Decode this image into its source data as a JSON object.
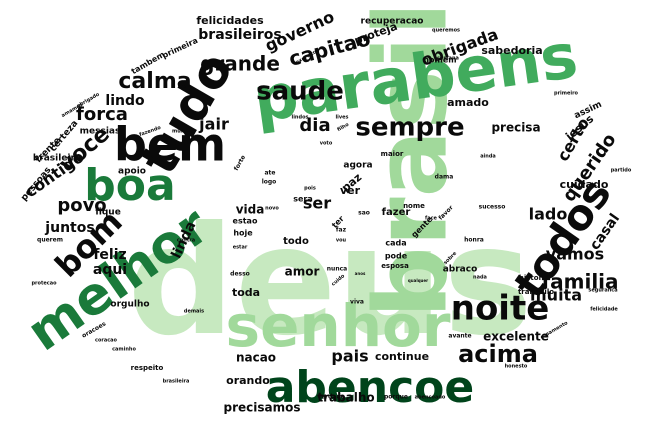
{
  "palette": {
    "dark": "#0a0a0a",
    "deep_green": "#00441b",
    "green": "#1a7a3a",
    "mid_green": "#41ab5d",
    "light_green": "#a1d99b",
    "pale_green": "#c7e9c0"
  },
  "words": [
    {
      "text": "deus",
      "weight": 1.0,
      "tone": "pale_green"
    },
    {
      "text": "brasil",
      "weight": 0.9,
      "tone": "light_green"
    },
    {
      "text": "parabens",
      "weight": 0.72,
      "tone": "mid_green"
    },
    {
      "text": "senhor",
      "weight": 0.7,
      "tone": "light_green"
    },
    {
      "text": "melhor",
      "weight": 0.68,
      "tone": "green"
    },
    {
      "text": "abencoe",
      "weight": 0.66,
      "tone": "deep_green"
    },
    {
      "text": "tudo",
      "weight": 0.62,
      "tone": "dark"
    },
    {
      "text": "bem",
      "weight": 0.6,
      "tone": "dark"
    },
    {
      "text": "boa",
      "weight": 0.58,
      "tone": "green"
    },
    {
      "text": "todos",
      "weight": 0.55,
      "tone": "dark"
    },
    {
      "text": "noite",
      "weight": 0.52,
      "tone": "dark"
    },
    {
      "text": "bom",
      "weight": 0.48,
      "tone": "dark"
    },
    {
      "text": "sempre",
      "weight": 0.4,
      "tone": "dark"
    },
    {
      "text": "saude",
      "weight": 0.4,
      "tone": "dark"
    },
    {
      "text": "acima",
      "weight": 0.36,
      "tone": "dark"
    },
    {
      "text": "calma",
      "weight": 0.3,
      "tone": "dark"
    },
    {
      "text": "grande",
      "weight": 0.28,
      "tone": "dark"
    },
    {
      "text": "voce",
      "weight": 0.3,
      "tone": "dark"
    },
    {
      "text": "familia",
      "weight": 0.3,
      "tone": "dark"
    },
    {
      "text": "capitao",
      "weight": 0.26,
      "tone": "dark"
    },
    {
      "text": "querido",
      "weight": 0.24,
      "tone": "dark"
    },
    {
      "text": "vamos",
      "weight": 0.22,
      "tone": "dark"
    },
    {
      "text": "obrigada",
      "weight": 0.22,
      "tone": "dark"
    },
    {
      "text": "governo",
      "weight": 0.22,
      "tone": "dark"
    },
    {
      "text": "forca",
      "weight": 0.22,
      "tone": "dark"
    },
    {
      "text": "dia",
      "weight": 0.24,
      "tone": "dark"
    },
    {
      "text": "povo",
      "weight": 0.22,
      "tone": "dark"
    },
    {
      "text": "contigo",
      "weight": 0.2,
      "tone": "dark"
    },
    {
      "text": "lado",
      "weight": 0.2,
      "tone": "dark"
    },
    {
      "text": "jair",
      "weight": 0.2,
      "tone": "dark"
    },
    {
      "text": "muita",
      "weight": 0.2,
      "tone": "dark"
    },
    {
      "text": "pais",
      "weight": 0.2,
      "tone": "dark"
    },
    {
      "text": "brasileiros",
      "weight": 0.18,
      "tone": "dark"
    },
    {
      "text": "certo",
      "weight": 0.18,
      "tone": "dark"
    },
    {
      "text": "casal",
      "weight": 0.18,
      "tone": "dark"
    },
    {
      "text": "juntos",
      "weight": 0.18,
      "tone": "dark"
    },
    {
      "text": "ser",
      "weight": 0.2,
      "tone": "dark"
    },
    {
      "text": "lindo",
      "weight": 0.16,
      "tone": "dark"
    },
    {
      "text": "feliz",
      "weight": 0.16,
      "tone": "dark"
    },
    {
      "text": "linda",
      "weight": 0.16,
      "tone": "dark"
    },
    {
      "text": "aqui",
      "weight": 0.16,
      "tone": "dark"
    },
    {
      "text": "precisa",
      "weight": 0.15,
      "tone": "dark"
    },
    {
      "text": "amor",
      "weight": 0.15,
      "tone": "dark"
    },
    {
      "text": "vida",
      "weight": 0.15,
      "tone": "dark"
    },
    {
      "text": "excelente",
      "weight": 0.14,
      "tone": "dark"
    },
    {
      "text": "continue",
      "weight": 0.14,
      "tone": "dark"
    },
    {
      "text": "nacao",
      "weight": 0.14,
      "tone": "dark"
    },
    {
      "text": "trabalho",
      "weight": 0.14,
      "tone": "dark"
    },
    {
      "text": "precisamos",
      "weight": 0.14,
      "tone": "dark"
    },
    {
      "text": "felicidades",
      "weight": 0.13,
      "tone": "dark"
    },
    {
      "text": "amado",
      "weight": 0.13,
      "tone": "dark"
    },
    {
      "text": "sabedoria",
      "weight": 0.12,
      "tone": "dark"
    },
    {
      "text": "proteja",
      "weight": 0.12,
      "tone": "dark"
    },
    {
      "text": "cuidado",
      "weight": 0.12,
      "tone": "dark"
    },
    {
      "text": "jesus",
      "weight": 0.12,
      "tone": "dark"
    },
    {
      "text": "toda",
      "weight": 0.12,
      "tone": "dark"
    },
    {
      "text": "orando",
      "weight": 0.11,
      "tone": "dark"
    },
    {
      "text": "recuperacao",
      "weight": 0.1,
      "tone": "dark"
    },
    {
      "text": "messias",
      "weight": 0.1,
      "tone": "dark"
    },
    {
      "text": "brasileiro",
      "weight": 0.1,
      "tone": "dark"
    },
    {
      "text": "pessoas",
      "weight": 0.1,
      "tone": "dark"
    },
    {
      "text": "certeza",
      "weight": 0.1,
      "tone": "dark"
    },
    {
      "text": "frente",
      "weight": 0.1,
      "tone": "dark"
    },
    {
      "text": "assim",
      "weight": 0.1,
      "tone": "dark"
    },
    {
      "text": "todo",
      "weight": 0.1,
      "tone": "dark"
    },
    {
      "text": "fazer",
      "weight": 0.1,
      "tone": "dark"
    },
    {
      "text": "paz",
      "weight": 0.12,
      "tone": "dark"
    },
    {
      "text": "agora",
      "weight": 0.09,
      "tone": "dark"
    },
    {
      "text": "ver",
      "weight": 0.12,
      "tone": "dark"
    },
    {
      "text": "apoio",
      "weight": 0.09,
      "tone": "dark"
    },
    {
      "text": "fique",
      "weight": 0.09,
      "tone": "dark"
    },
    {
      "text": "abraco",
      "weight": 0.09,
      "tone": "dark"
    },
    {
      "text": "orgulho",
      "weight": 0.09,
      "tone": "dark"
    },
    {
      "text": "homem",
      "weight": 0.08,
      "tone": "dark"
    },
    {
      "text": "primeira",
      "weight": 0.07,
      "tone": "dark"
    },
    {
      "text": "tambem",
      "weight": 0.07,
      "tone": "dark"
    },
    {
      "text": "cada",
      "weight": 0.08,
      "tone": "dark"
    },
    {
      "text": "pode",
      "weight": 0.08,
      "tone": "dark"
    },
    {
      "text": "esposa",
      "weight": 0.07,
      "tone": "dark"
    },
    {
      "text": "gente",
      "weight": 0.08,
      "tone": "dark"
    },
    {
      "text": "nome",
      "weight": 0.07,
      "tone": "dark"
    },
    {
      "text": "hoje",
      "weight": 0.08,
      "tone": "dark"
    },
    {
      "text": "estao",
      "weight": 0.08,
      "tone": "dark"
    },
    {
      "text": "sera",
      "weight": 0.08,
      "tone": "dark"
    },
    {
      "text": "maior",
      "weight": 0.07,
      "tone": "dark"
    },
    {
      "text": "tranquilo",
      "weight": 0.07,
      "tone": "dark"
    },
    {
      "text": "historia",
      "weight": 0.07,
      "tone": "dark"
    },
    {
      "text": "sucesso",
      "weight": 0.06,
      "tone": "dark"
    },
    {
      "text": "respeito",
      "weight": 0.07,
      "tone": "dark"
    },
    {
      "text": "verdade",
      "weight": 0.06,
      "tone": "dark"
    },
    {
      "text": "porque",
      "weight": 0.06,
      "tone": "dark"
    },
    {
      "text": "abencoado",
      "weight": 0.06,
      "tone": "dark"
    },
    {
      "text": "honesto",
      "weight": 0.06,
      "tone": "dark"
    },
    {
      "text": "casamento",
      "weight": 0.06,
      "tone": "dark"
    },
    {
      "text": "seguranca",
      "weight": 0.05,
      "tone": "dark"
    },
    {
      "text": "felicidade",
      "weight": 0.05,
      "tone": "dark"
    },
    {
      "text": "brasileira",
      "weight": 0.05,
      "tone": "dark"
    },
    {
      "text": "caminho",
      "weight": 0.05,
      "tone": "dark"
    },
    {
      "text": "coracao",
      "weight": 0.05,
      "tone": "dark"
    },
    {
      "text": "oracoes",
      "weight": 0.05,
      "tone": "dark"
    },
    {
      "text": "demais",
      "weight": 0.05,
      "tone": "dark"
    },
    {
      "text": "protecao",
      "weight": 0.05,
      "tone": "dark"
    },
    {
      "text": "querem",
      "weight": 0.05,
      "tone": "dark"
    },
    {
      "text": "amamos",
      "weight": 0.05,
      "tone": "dark"
    },
    {
      "text": "obrigado",
      "weight": 0.05,
      "tone": "dark"
    },
    {
      "text": "exercito",
      "weight": 0.05,
      "tone": "dark"
    },
    {
      "text": "queremos",
      "weight": 0.05,
      "tone": "dark"
    },
    {
      "text": "semana",
      "weight": 0.05,
      "tone": "dark"
    },
    {
      "text": "primeiro",
      "weight": 0.05,
      "tone": "dark"
    },
    {
      "text": "partido",
      "weight": 0.05,
      "tone": "dark"
    },
    {
      "text": "ainda",
      "weight": 0.05,
      "tone": "dark"
    },
    {
      "text": "dama",
      "weight": 0.05,
      "tone": "dark"
    },
    {
      "text": "favor",
      "weight": 0.05,
      "tone": "dark"
    },
    {
      "text": "honra",
      "weight": 0.05,
      "tone": "dark"
    },
    {
      "text": "sobre",
      "weight": 0.05,
      "tone": "dark"
    },
    {
      "text": "nada",
      "weight": 0.05,
      "tone": "dark"
    },
    {
      "text": "avante",
      "weight": 0.05,
      "tone": "dark"
    },
    {
      "text": "nunca",
      "weight": 0.05,
      "tone": "dark"
    },
    {
      "text": "cuido",
      "weight": 0.05,
      "tone": "dark"
    },
    {
      "text": "viva",
      "weight": 0.05,
      "tone": "dark"
    },
    {
      "text": "desso",
      "weight": 0.05,
      "tone": "dark"
    },
    {
      "text": "estar",
      "weight": 0.05,
      "tone": "dark"
    },
    {
      "text": "contra",
      "weight": 0.05,
      "tone": "dark"
    },
    {
      "text": "forte",
      "weight": 0.05,
      "tone": "dark"
    },
    {
      "text": "logo",
      "weight": 0.05,
      "tone": "dark"
    },
    {
      "text": "ate",
      "weight": 0.05,
      "tone": "dark"
    },
    {
      "text": "novo",
      "weight": 0.05,
      "tone": "dark"
    },
    {
      "text": "lives",
      "weight": 0.05,
      "tone": "dark"
    },
    {
      "text": "lindos",
      "weight": 0.05,
      "tone": "dark"
    },
    {
      "text": "filho",
      "weight": 0.05,
      "tone": "dark"
    },
    {
      "text": "fazendo",
      "weight": 0.05,
      "tone": "dark"
    },
    {
      "text": "mulher",
      "weight": 0.05,
      "tone": "dark"
    },
    {
      "text": "pois",
      "weight": 0.05,
      "tone": "dark"
    },
    {
      "text": "faz",
      "weight": 0.06,
      "tone": "dark"
    },
    {
      "text": "sao",
      "weight": 0.06,
      "tone": "dark"
    },
    {
      "text": "ter",
      "weight": 0.07,
      "tone": "dark"
    },
    {
      "text": "face",
      "weight": 0.05,
      "tone": "dark"
    },
    {
      "text": "voto",
      "weight": 0.05,
      "tone": "dark"
    },
    {
      "text": "vou",
      "weight": 0.05,
      "tone": "dark"
    },
    {
      "text": "anos",
      "weight": 0.05,
      "tone": "dark"
    },
    {
      "text": "qualquer",
      "weight": 0.05,
      "tone": "dark"
    }
  ]
}
